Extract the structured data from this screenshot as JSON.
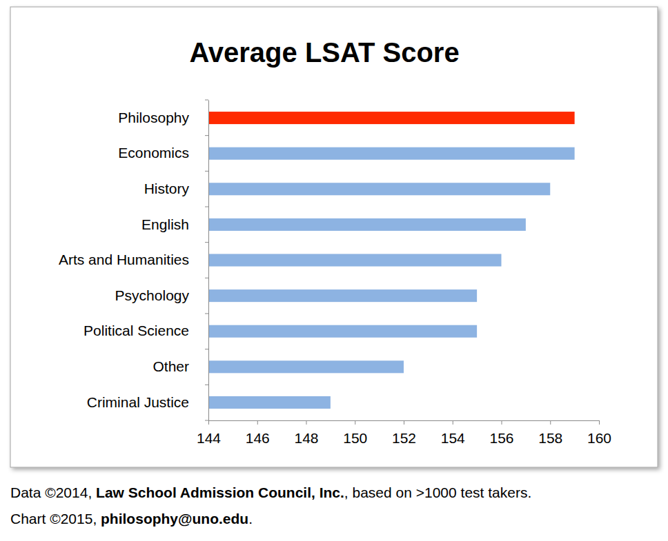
{
  "chart_data": {
    "type": "bar",
    "orientation": "horizontal",
    "title": "Average LSAT Score",
    "categories": [
      "Philosophy",
      "Economics",
      "History",
      "English",
      "Arts and Humanities",
      "Psychology",
      "Political Science",
      "Other",
      "Criminal Justice"
    ],
    "values": [
      159,
      159,
      158,
      157,
      156,
      155,
      155,
      152,
      149
    ],
    "colors": [
      "#ff2a00",
      "#8db3e2",
      "#8db3e2",
      "#8db3e2",
      "#8db3e2",
      "#8db3e2",
      "#8db3e2",
      "#8db3e2",
      "#8db3e2"
    ],
    "xlim": [
      144,
      160
    ],
    "xticks": [
      144,
      146,
      148,
      150,
      152,
      154,
      156,
      158,
      160
    ],
    "grid": false,
    "annotations": [
      [
        "Data ©2014, ",
        "Law School Admission Council, Inc.",
        ", based on >1000 test takers."
      ],
      [
        "Chart ©2015, ",
        "philosophy@uno.edu",
        "."
      ]
    ]
  }
}
